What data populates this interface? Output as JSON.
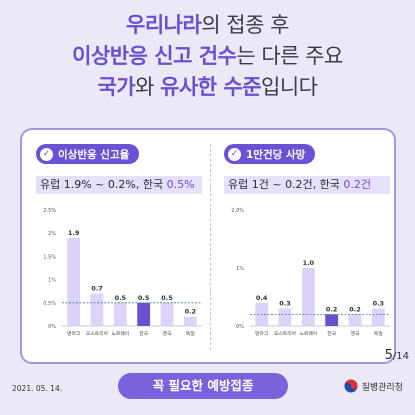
{
  "headline": {
    "line1": {
      "a": "우리나라",
      "b": "의 접종 후"
    },
    "line2": {
      "a": "이상반응 신고 건수",
      "b": "는 다른 주요"
    },
    "line3": {
      "a": "국가",
      "b": "와 ",
      "c": "유사한 수준",
      "d": "입니다"
    }
  },
  "left_panel": {
    "pill_label": "이상반응 신고율",
    "summary_prefix": "유럽 1.9% ~ 0.2%, 한국 ",
    "summary_korea": "0.5%"
  },
  "right_panel": {
    "pill_label": "1만건당 사망",
    "summary_prefix": "유럽 1건 ~ 0.2건, 한국 ",
    "summary_korea": "0.2건"
  },
  "chart_data": [
    {
      "type": "bar",
      "title": "이상반응 신고율",
      "categories": [
        "덴마크",
        "오스트리아",
        "노르웨이",
        "한국",
        "영국",
        "독일"
      ],
      "values": [
        1.9,
        0.7,
        0.5,
        0.5,
        0.5,
        0.2
      ],
      "value_labels": [
        "1.9",
        "0.7",
        "0.5",
        "0.5",
        "0.5",
        "0.2"
      ],
      "yticks": [
        "2.5%",
        "2%",
        "1.5%",
        "1%",
        "0.5%",
        "0%"
      ],
      "ytick_values": [
        2.5,
        2,
        1.5,
        1,
        0.5,
        0
      ],
      "ylim": [
        0,
        2.5
      ],
      "reference_line": 0.5,
      "highlight": "한국",
      "colors": {
        "bar": "#ddd3fa",
        "highlight": "#6a4fd0",
        "ref": "#2e8b8b"
      }
    },
    {
      "type": "bar",
      "title": "1만건당 사망",
      "categories": [
        "덴마크",
        "오스트리아",
        "노르웨이",
        "한국",
        "영국",
        "독일"
      ],
      "values": [
        0.4,
        0.3,
        1.0,
        0.2,
        0.2,
        0.3
      ],
      "value_labels": [
        "0.4",
        "0.3",
        "1.0",
        "0.2",
        "0.2",
        "0.3"
      ],
      "yticks": [
        "2.0%",
        "1%",
        "0%"
      ],
      "ytick_values": [
        2,
        1,
        0
      ],
      "ylim": [
        0,
        2
      ],
      "reference_line": 0.2,
      "highlight": "한국",
      "colors": {
        "bar": "#ddd3fa",
        "highlight": "#6a4fd0",
        "ref": "#2e8b8b"
      }
    }
  ],
  "page": {
    "current": "5",
    "total": "/14"
  },
  "footer": {
    "date": "2021. 05. 14.",
    "cta": "꼭 필요한 예방접종",
    "agency": "질병관리청"
  }
}
